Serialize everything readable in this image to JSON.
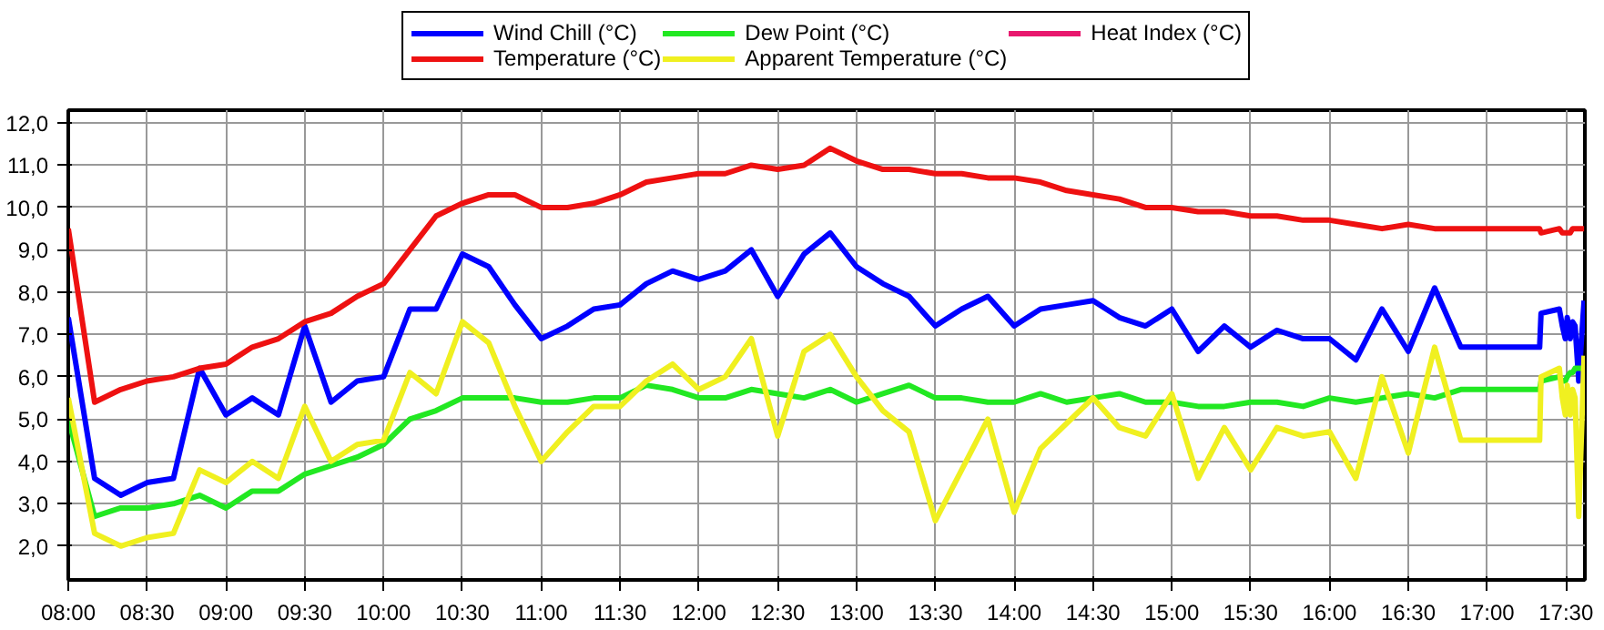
{
  "chart_data": {
    "type": "line",
    "x": [
      8,
      8.167,
      8.333,
      8.5,
      8.667,
      8.833,
      9,
      9.167,
      9.333,
      9.5,
      9.667,
      9.833,
      10,
      10.167,
      10.333,
      10.5,
      10.667,
      10.833,
      11,
      11.167,
      11.333,
      11.5,
      11.667,
      11.833,
      12,
      12.167,
      12.333,
      12.5,
      12.667,
      12.833,
      13,
      13.167,
      13.333,
      13.5,
      13.667,
      13.833,
      14,
      14.167,
      14.333,
      14.5,
      14.667,
      14.833,
      15,
      15.167,
      15.333,
      15.5,
      15.667,
      15.833,
      16,
      16.167,
      16.333,
      16.5,
      16.667,
      16.833,
      17,
      17.167,
      17.333,
      17.342,
      17.458,
      17.477,
      17.496,
      17.508,
      17.527,
      17.542,
      17.558,
      17.581,
      17.615
    ],
    "series": [
      {
        "name": "Wind Chill (°C)",
        "color": "#0000ff",
        "values": [
          7.4,
          3.6,
          3.2,
          3.5,
          3.6,
          6.2,
          5.1,
          5.5,
          5.1,
          7.2,
          5.4,
          5.9,
          6.0,
          7.6,
          7.6,
          8.9,
          8.6,
          7.7,
          6.9,
          7.2,
          7.6,
          7.7,
          8.2,
          8.5,
          8.3,
          8.5,
          9.0,
          7.9,
          8.9,
          9.4,
          8.6,
          8.2,
          7.9,
          7.2,
          7.6,
          7.9,
          7.2,
          7.6,
          7.7,
          7.8,
          7.4,
          7.2,
          7.6,
          6.6,
          7.2,
          6.7,
          7.1,
          6.9,
          6.9,
          6.4,
          7.6,
          6.6,
          8.1,
          6.7,
          6.7,
          6.7,
          6.7,
          7.5,
          7.6,
          7.2,
          6.9,
          7.4,
          6.9,
          7.3,
          7.2,
          5.9,
          7.8
        ]
      },
      {
        "name": "Temperature (°C)",
        "color": "#ee1111",
        "values": [
          9.5,
          5.4,
          5.7,
          5.9,
          6.0,
          6.2,
          6.3,
          6.7,
          6.9,
          7.3,
          7.5,
          7.9,
          8.2,
          9.0,
          9.8,
          10.1,
          10.3,
          10.3,
          10.0,
          10.0,
          10.1,
          10.3,
          10.6,
          10.7,
          10.8,
          10.8,
          11.0,
          10.9,
          11.0,
          11.4,
          11.1,
          10.9,
          10.9,
          10.8,
          10.8,
          10.7,
          10.7,
          10.6,
          10.4,
          10.3,
          10.2,
          10.0,
          10.0,
          9.9,
          9.9,
          9.8,
          9.8,
          9.7,
          9.7,
          9.6,
          9.5,
          9.6,
          9.5,
          9.5,
          9.5,
          9.5,
          9.5,
          9.4,
          9.5,
          9.4,
          9.4,
          9.4,
          9.4,
          9.5,
          9.5,
          9.5,
          9.5
        ]
      },
      {
        "name": "Dew Point (°C)",
        "color": "#22e822",
        "values": [
          5.0,
          2.7,
          2.9,
          2.9,
          3.0,
          3.2,
          2.9,
          3.3,
          3.3,
          3.7,
          3.9,
          4.1,
          4.4,
          5.0,
          5.2,
          5.5,
          5.5,
          5.5,
          5.4,
          5.4,
          5.5,
          5.5,
          5.8,
          5.7,
          5.5,
          5.5,
          5.7,
          5.6,
          5.5,
          5.7,
          5.4,
          5.6,
          5.8,
          5.5,
          5.5,
          5.4,
          5.4,
          5.6,
          5.4,
          5.5,
          5.6,
          5.4,
          5.4,
          5.3,
          5.3,
          5.4,
          5.4,
          5.3,
          5.5,
          5.4,
          5.5,
          5.6,
          5.5,
          5.7,
          5.7,
          5.7,
          5.7,
          5.9,
          6.0,
          5.9,
          5.9,
          6.0,
          6.1,
          6.1,
          6.2,
          6.2,
          6.2
        ]
      },
      {
        "name": "Apparent Temperature (°C)",
        "color": "#f0f020",
        "values": [
          5.5,
          2.3,
          2.0,
          2.2,
          2.3,
          3.8,
          3.5,
          4.0,
          3.6,
          5.3,
          4.0,
          4.4,
          4.5,
          6.1,
          5.6,
          7.3,
          6.8,
          5.3,
          4.0,
          4.7,
          5.3,
          5.3,
          5.9,
          6.3,
          5.7,
          6.0,
          6.9,
          4.6,
          6.6,
          7.0,
          6.0,
          5.2,
          4.7,
          2.6,
          3.8,
          5.0,
          2.8,
          4.3,
          4.9,
          5.5,
          4.8,
          4.6,
          5.6,
          3.6,
          4.8,
          3.8,
          4.8,
          4.6,
          4.7,
          3.6,
          6.0,
          4.2,
          6.7,
          4.5,
          4.5,
          4.5,
          4.5,
          6.0,
          6.2,
          5.5,
          5.1,
          5.8,
          5.1,
          5.7,
          5.5,
          2.7,
          6.5
        ]
      },
      {
        "name": "Heat Index (°C)",
        "color": "#e8186e",
        "values": [
          null,
          null,
          null,
          null,
          null,
          null,
          null,
          null,
          null,
          null,
          null,
          null,
          null,
          null,
          null,
          null,
          null,
          null,
          null,
          null,
          null,
          null,
          null,
          null,
          null,
          null,
          null,
          null,
          null,
          null,
          null,
          null,
          null,
          null,
          null,
          null,
          null,
          null,
          null,
          null,
          null,
          null,
          null,
          null,
          null,
          null,
          null,
          null,
          null,
          null,
          null,
          null,
          null,
          null,
          null,
          null,
          null,
          null,
          null,
          null,
          null,
          null,
          null,
          null,
          null,
          null,
          null
        ]
      }
    ],
    "xlim": [
      8,
      17.62
    ],
    "ylim": [
      1.2,
      12.3
    ],
    "xticks": [
      {
        "value": 8,
        "label": "08:00"
      },
      {
        "value": 8.5,
        "label": "08:30"
      },
      {
        "value": 9,
        "label": "09:00"
      },
      {
        "value": 9.5,
        "label": "09:30"
      },
      {
        "value": 10,
        "label": "10:00"
      },
      {
        "value": 10.5,
        "label": "10:30"
      },
      {
        "value": 11,
        "label": "11:00"
      },
      {
        "value": 11.5,
        "label": "11:30"
      },
      {
        "value": 12,
        "label": "12:00"
      },
      {
        "value": 12.5,
        "label": "12:30"
      },
      {
        "value": 13,
        "label": "13:00"
      },
      {
        "value": 13.5,
        "label": "13:30"
      },
      {
        "value": 14,
        "label": "14:00"
      },
      {
        "value": 14.5,
        "label": "14:30"
      },
      {
        "value": 15,
        "label": "15:00"
      },
      {
        "value": 15.5,
        "label": "15:30"
      },
      {
        "value": 16,
        "label": "16:00"
      },
      {
        "value": 16.5,
        "label": "16:30"
      },
      {
        "value": 17,
        "label": "17:00"
      },
      {
        "value": 17.5,
        "label": "17:30"
      }
    ],
    "yticks": [
      {
        "value": 2,
        "label": "2,0"
      },
      {
        "value": 3,
        "label": "3,0"
      },
      {
        "value": 4,
        "label": "4,0"
      },
      {
        "value": 5,
        "label": "5,0"
      },
      {
        "value": 6,
        "label": "6,0"
      },
      {
        "value": 7,
        "label": "7,0"
      },
      {
        "value": 8,
        "label": "8,0"
      },
      {
        "value": 9,
        "label": "9,0"
      },
      {
        "value": 10,
        "label": "10,0"
      },
      {
        "value": 11,
        "label": "11,0"
      },
      {
        "value": 12,
        "label": "12,0"
      }
    ],
    "grid": true,
    "legend": "top",
    "line_style": "solid",
    "marker": "none"
  }
}
